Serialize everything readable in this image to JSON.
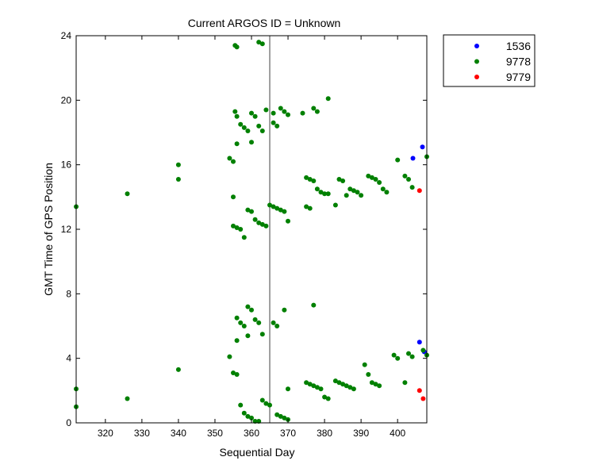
{
  "chart_data": {
    "type": "scatter",
    "title": "Current ARGOS ID = Unknown",
    "xlabel": "Sequential Day",
    "ylabel": "GMT Time of GPS Position",
    "xlim": [
      312,
      408
    ],
    "ylim": [
      0,
      24
    ],
    "xticks": [
      320,
      330,
      340,
      350,
      360,
      370,
      380,
      390,
      400
    ],
    "yticks": [
      0,
      4,
      8,
      12,
      16,
      20,
      24
    ],
    "grid": false,
    "legend_position": "outside-top-right",
    "reference_line_x": 365,
    "series": [
      {
        "name": "1536",
        "color": "#0000ff",
        "points": [
          [
            404.2,
            16.4
          ],
          [
            406.8,
            17.1
          ],
          [
            406,
            5.0
          ],
          [
            407.3,
            4.4
          ]
        ]
      },
      {
        "name": "9778",
        "color": "#008000",
        "points": [
          [
            312,
            13.4
          ],
          [
            312,
            2.1
          ],
          [
            312,
            1.0
          ],
          [
            326,
            14.2
          ],
          [
            326,
            1.5
          ],
          [
            340,
            16.0
          ],
          [
            340,
            15.1
          ],
          [
            340,
            3.3
          ],
          [
            354,
            16.4
          ],
          [
            354,
            4.1
          ],
          [
            355,
            16.2
          ],
          [
            355,
            14.0
          ],
          [
            355,
            12.2
          ],
          [
            355,
            3.1
          ],
          [
            355.5,
            23.4
          ],
          [
            355.5,
            19.3
          ],
          [
            356,
            23.3
          ],
          [
            356,
            19.0
          ],
          [
            356,
            17.3
          ],
          [
            356,
            12.1
          ],
          [
            356,
            6.5
          ],
          [
            356,
            5.1
          ],
          [
            356,
            3.0
          ],
          [
            357,
            18.5
          ],
          [
            357,
            12.0
          ],
          [
            357,
            6.2
          ],
          [
            357,
            1.1
          ],
          [
            358,
            18.3
          ],
          [
            358,
            11.5
          ],
          [
            358,
            6.0
          ],
          [
            358,
            0.6
          ],
          [
            359,
            18.1
          ],
          [
            359,
            13.2
          ],
          [
            359,
            7.2
          ],
          [
            359,
            5.4
          ],
          [
            359,
            0.4
          ],
          [
            360,
            19.2
          ],
          [
            360,
            17.4
          ],
          [
            360,
            13.1
          ],
          [
            360,
            7.0
          ],
          [
            360,
            0.3
          ],
          [
            361,
            19.0
          ],
          [
            361,
            12.6
          ],
          [
            361,
            6.4
          ],
          [
            361,
            0.1
          ],
          [
            362,
            23.6
          ],
          [
            362,
            18.4
          ],
          [
            362,
            12.4
          ],
          [
            362,
            6.2
          ],
          [
            362,
            0.1
          ],
          [
            363,
            23.5
          ],
          [
            363,
            18.1
          ],
          [
            363,
            12.3
          ],
          [
            363,
            5.5
          ],
          [
            363,
            1.4
          ],
          [
            364,
            19.4
          ],
          [
            364,
            12.2
          ],
          [
            364,
            1.2
          ],
          [
            365,
            13.5
          ],
          [
            365,
            1.1
          ],
          [
            366,
            19.2
          ],
          [
            366,
            18.6
          ],
          [
            366,
            13.4
          ],
          [
            366,
            6.2
          ],
          [
            367,
            18.4
          ],
          [
            367,
            13.3
          ],
          [
            367,
            6.0
          ],
          [
            367,
            0.5
          ],
          [
            368,
            19.5
          ],
          [
            368,
            13.2
          ],
          [
            368,
            0.4
          ],
          [
            369,
            19.3
          ],
          [
            369,
            13.1
          ],
          [
            369,
            7.0
          ],
          [
            369,
            0.3
          ],
          [
            370,
            19.1
          ],
          [
            370,
            12.5
          ],
          [
            370,
            2.1
          ],
          [
            370,
            0.2
          ],
          [
            374,
            19.2
          ],
          [
            375,
            15.2
          ],
          [
            375,
            13.4
          ],
          [
            375,
            2.5
          ],
          [
            376,
            15.1
          ],
          [
            376,
            13.3
          ],
          [
            376,
            2.4
          ],
          [
            377,
            19.5
          ],
          [
            377,
            15.0
          ],
          [
            377,
            7.3
          ],
          [
            377,
            2.3
          ],
          [
            378,
            19.3
          ],
          [
            378,
            14.5
          ],
          [
            378,
            2.2
          ],
          [
            379,
            14.3
          ],
          [
            379,
            2.1
          ],
          [
            380,
            14.2
          ],
          [
            380,
            1.6
          ],
          [
            381,
            20.1
          ],
          [
            381,
            14.2
          ],
          [
            381,
            1.5
          ],
          [
            383,
            13.5
          ],
          [
            383,
            2.6
          ],
          [
            384,
            15.1
          ],
          [
            384,
            2.5
          ],
          [
            385,
            15.0
          ],
          [
            385,
            2.4
          ],
          [
            386,
            14.1
          ],
          [
            386,
            2.3
          ],
          [
            387,
            14.5
          ],
          [
            387,
            2.2
          ],
          [
            388,
            14.4
          ],
          [
            388,
            2.1
          ],
          [
            389,
            14.3
          ],
          [
            390,
            14.1
          ],
          [
            391,
            3.6
          ],
          [
            392,
            15.3
          ],
          [
            392,
            3.0
          ],
          [
            393,
            15.2
          ],
          [
            393,
            2.5
          ],
          [
            394,
            15.1
          ],
          [
            394,
            2.4
          ],
          [
            395,
            14.9
          ],
          [
            395,
            2.3
          ],
          [
            396,
            14.5
          ],
          [
            397,
            14.3
          ],
          [
            399,
            4.2
          ],
          [
            400,
            16.3
          ],
          [
            400,
            4.0
          ],
          [
            402,
            15.3
          ],
          [
            402,
            2.5
          ],
          [
            403,
            15.1
          ],
          [
            403,
            4.3
          ],
          [
            404,
            14.6
          ],
          [
            404,
            4.1
          ],
          [
            407,
            4.5
          ],
          [
            408,
            16.5
          ],
          [
            408,
            4.2
          ]
        ]
      },
      {
        "name": "9779",
        "color": "#ff0000",
        "points": [
          [
            406,
            14.4
          ],
          [
            406,
            2.0
          ],
          [
            407,
            1.5
          ]
        ]
      }
    ]
  }
}
